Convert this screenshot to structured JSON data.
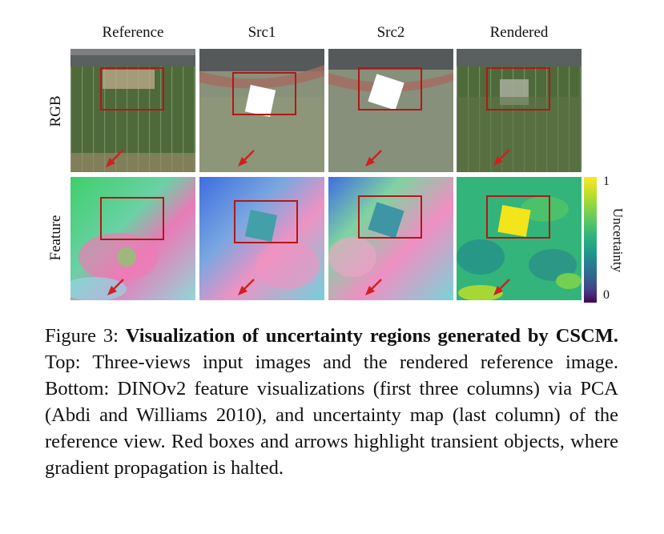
{
  "figure": {
    "columns": [
      "Reference",
      "Src1",
      "Src2",
      "Rendered"
    ],
    "rows": [
      "RGB",
      "Feature"
    ],
    "colorbar": {
      "max_label": "1",
      "min_label": "0",
      "label": "Uncertainty",
      "colormap": "viridis"
    },
    "highlight_color": "#b01818"
  },
  "caption": {
    "prefix": "Figure 3: ",
    "bold": "Visualization of uncertainty regions generated by CSCM.",
    "text": " Top: Three-views input images and the rendered reference image. Bottom: DINOv2 feature visualizations (first three columns) via PCA (Abdi and Williams 2010), and uncertainty map (last column) of the reference view. Red boxes and arrows highlight transient objects, where gradient propagation is halted."
  }
}
